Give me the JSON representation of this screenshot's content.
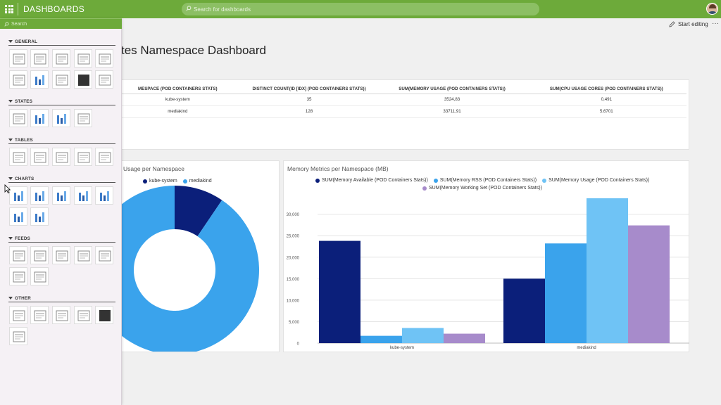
{
  "app": {
    "brand": "DASHBOARDS",
    "search_placeholder": "Search for dashboards",
    "start_editing": "Start editing",
    "more": "···"
  },
  "page": {
    "title": "tes Namespace Dashboard"
  },
  "sidebar": {
    "search_placeholder": "Search",
    "sections": [
      {
        "label": "GENERAL",
        "tiles": [
          "card-icon",
          "text-icon",
          "image-icon",
          "web-page-icon",
          "map-pin-icon",
          "clock-icon",
          "gauge-dial-icon",
          "annotation-icon",
          "dark-tile-icon",
          "list-icon"
        ]
      },
      {
        "label": "STATES",
        "tiles": [
          "name-value-icon",
          "arc-gauge-icon",
          "ring-gauge-icon",
          "status-bar-icon"
        ]
      },
      {
        "label": "TABLES",
        "tiles": [
          "grid-table-icon",
          "list-table-icon",
          "relation-table-icon",
          "blocks-table-icon",
          "matrix-table-icon"
        ]
      },
      {
        "label": "CHARTS",
        "tiles": [
          "area-chart-icon",
          "column-chart-icon",
          "bar-chart-icon",
          "donut-chart-icon",
          "line-chart-icon",
          "pie-chart-icon",
          "sankey-chart-icon"
        ]
      },
      {
        "label": "FEEDS",
        "tiles": [
          "calendar-icon",
          "dropdown-icon",
          "feed-list-icon",
          "tree-feed-icon",
          "feed-table-icon",
          "flow-icon",
          "timeline-icon"
        ]
      },
      {
        "label": "OTHER",
        "tiles": [
          "network-icon",
          "treemap-icon",
          "flow-map-icon",
          "signal-icon",
          "dark-graph-icon",
          "visio-icon"
        ]
      }
    ]
  },
  "table": {
    "headers": [
      "MESPACE (POD CONTAINERS STATS)",
      "DISTINCT COUNT(ID [IDX] (POD CONTAINERS STATS))",
      "SUM(MEMORY USAGE (POD CONTAINERS STATS))",
      "SUM(CPU USAGE CORES (POD CONTAINERS STATS))"
    ],
    "rows": [
      [
        "kube-system",
        "35",
        "3524,83",
        "0,491"
      ],
      [
        "mediakind",
        "128",
        "33711,91",
        "5,6701"
      ]
    ]
  },
  "charts": [
    {
      "panel_title": "Usage per Namespace",
      "type": "pie",
      "categories": [
        "kube-system",
        "mediakind"
      ],
      "values": [
        3524.83,
        33711.91
      ],
      "colors": [
        "#0b1f7a",
        "#3aa3ec"
      ],
      "donut": true
    },
    {
      "panel_title": "Memory Metrics per Namespace (MB)",
      "type": "bar",
      "categories": [
        "kube-system",
        "mediakind"
      ],
      "series": [
        {
          "name": "SUM(Memory Available (POD Containers Stats))",
          "values": [
            23800,
            15000
          ],
          "color": "#0b1f7a"
        },
        {
          "name": "SUM(Memory RSS (POD Containers Stats))",
          "values": [
            1700,
            23200
          ],
          "color": "#3aa3ec"
        },
        {
          "name": "SUM(Memory Usage (POD Containers Stats))",
          "values": [
            3525,
            33712
          ],
          "color": "#6fc3f5"
        },
        {
          "name": "SUM(Memory Working Set (POD Containers Stats))",
          "values": [
            2200,
            27400
          ],
          "color": "#a78bcb"
        }
      ],
      "ylim": [
        0,
        33712
      ],
      "yticks": [
        "0",
        "5,000",
        "10,000",
        "15,000",
        "20,000",
        "25,000",
        "30,000"
      ],
      "ytick_values": [
        0,
        5000,
        10000,
        15000,
        20000,
        25000,
        30000
      ],
      "grid": true,
      "legend": "top"
    }
  ],
  "chart_data": [
    {
      "type": "pie",
      "title": "Usage per Namespace",
      "categories": [
        "kube-system",
        "mediakind"
      ],
      "values": [
        3524.83,
        33711.91
      ]
    },
    {
      "type": "bar",
      "title": "Memory Metrics per Namespace (MB)",
      "categories": [
        "kube-system",
        "mediakind"
      ],
      "series": [
        {
          "name": "SUM(Memory Available (POD Containers Stats))",
          "values": [
            23800,
            15000
          ]
        },
        {
          "name": "SUM(Memory RSS (POD Containers Stats))",
          "values": [
            1700,
            23200
          ]
        },
        {
          "name": "SUM(Memory Usage (POD Containers Stats))",
          "values": [
            3525,
            33712
          ]
        },
        {
          "name": "SUM(Memory Working Set (POD Containers Stats))",
          "values": [
            2200,
            27400
          ]
        }
      ],
      "ylim": [
        0,
        33712
      ],
      "grid": true,
      "legend": "top"
    }
  ]
}
